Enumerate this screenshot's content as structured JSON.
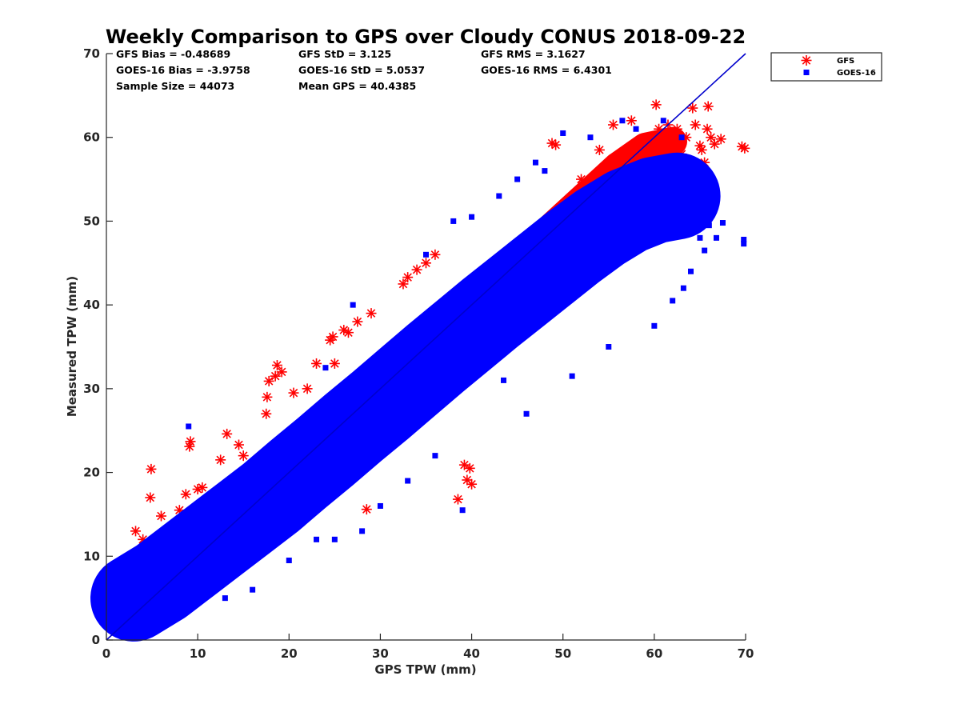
{
  "chart_data": {
    "type": "scatter",
    "title": "Weekly Comparison to GPS over Cloudy CONUS 2018-09-22",
    "xlabel": "GPS TPW (mm)",
    "ylabel": "Measured TPW (mm)",
    "xlim": [
      0,
      70
    ],
    "ylim": [
      0,
      70
    ],
    "x_ticks": [
      "0",
      "10",
      "20",
      "30",
      "40",
      "50",
      "60",
      "70"
    ],
    "y_ticks": [
      "0",
      "10",
      "20",
      "30",
      "40",
      "50",
      "60",
      "70"
    ],
    "grid": false,
    "legend_position": "outside-top-right",
    "reference_line": {
      "x": [
        0,
        70
      ],
      "y": [
        0,
        70
      ],
      "color": "#0000cc"
    },
    "stats": [
      [
        "GFS Bias = -0.48689",
        "GFS StD = 3.125",
        "GFS RMS = 3.1627"
      ],
      [
        "GOES-16 Bias = -3.9758",
        "GOES-16 StD = 5.0537",
        "GOES-16 RMS = 6.4301"
      ],
      [
        "Sample Size = 44073",
        "Mean GPS = 40.4385",
        ""
      ]
    ],
    "series": [
      {
        "name": "GFS",
        "marker": "asterisk",
        "color": "#ff0000",
        "bulk": [
          {
            "x": 5,
            "y": 6.8
          },
          {
            "x": 8,
            "y": 9
          },
          {
            "x": 11,
            "y": 11.8
          },
          {
            "x": 14,
            "y": 14.6
          },
          {
            "x": 17,
            "y": 17.5
          },
          {
            "x": 20,
            "y": 20.4
          },
          {
            "x": 23,
            "y": 23.3
          },
          {
            "x": 26,
            "y": 26.2
          },
          {
            "x": 29,
            "y": 29.2
          },
          {
            "x": 32,
            "y": 32.2
          },
          {
            "x": 35,
            "y": 35.3
          },
          {
            "x": 38,
            "y": 38.4
          },
          {
            "x": 41,
            "y": 41.4
          },
          {
            "x": 44,
            "y": 44.4
          },
          {
            "x": 47,
            "y": 47.5
          },
          {
            "x": 50,
            "y": 50.5
          },
          {
            "x": 53,
            "y": 53.5
          },
          {
            "x": 56,
            "y": 56.5
          },
          {
            "x": 59,
            "y": 58.8
          },
          {
            "x": 62,
            "y": 59.5
          }
        ],
        "bulk_width": 3.2,
        "points": [
          {
            "x": 2.5,
            "y": 8.5
          },
          {
            "x": 2.7,
            "y": 7.3
          },
          {
            "x": 3.2,
            "y": 13
          },
          {
            "x": 4,
            "y": 12
          },
          {
            "x": 4.5,
            "y": 10.5
          },
          {
            "x": 4.8,
            "y": 17
          },
          {
            "x": 4.9,
            "y": 20.4
          },
          {
            "x": 6,
            "y": 14.8
          },
          {
            "x": 7,
            "y": 10
          },
          {
            "x": 8,
            "y": 15.5
          },
          {
            "x": 8.7,
            "y": 17.4
          },
          {
            "x": 9.1,
            "y": 23.1
          },
          {
            "x": 9.2,
            "y": 23.7
          },
          {
            "x": 10,
            "y": 18
          },
          {
            "x": 10.5,
            "y": 18.2
          },
          {
            "x": 12.5,
            "y": 21.5
          },
          {
            "x": 13.2,
            "y": 24.6
          },
          {
            "x": 14.5,
            "y": 23.3
          },
          {
            "x": 15,
            "y": 22
          },
          {
            "x": 17.5,
            "y": 27
          },
          {
            "x": 17.6,
            "y": 29
          },
          {
            "x": 17.8,
            "y": 30.9
          },
          {
            "x": 18.5,
            "y": 31.5
          },
          {
            "x": 18.7,
            "y": 32.8
          },
          {
            "x": 19.2,
            "y": 32
          },
          {
            "x": 20.5,
            "y": 29.5
          },
          {
            "x": 22,
            "y": 30
          },
          {
            "x": 23,
            "y": 33
          },
          {
            "x": 24.5,
            "y": 35.8
          },
          {
            "x": 24.8,
            "y": 36.2
          },
          {
            "x": 25,
            "y": 33
          },
          {
            "x": 26,
            "y": 37
          },
          {
            "x": 26.5,
            "y": 36.7
          },
          {
            "x": 27.5,
            "y": 38
          },
          {
            "x": 29,
            "y": 39
          },
          {
            "x": 28.5,
            "y": 15.6
          },
          {
            "x": 32.5,
            "y": 42.5
          },
          {
            "x": 33,
            "y": 43.3
          },
          {
            "x": 34,
            "y": 44.2
          },
          {
            "x": 35,
            "y": 45
          },
          {
            "x": 36,
            "y": 46
          },
          {
            "x": 38.5,
            "y": 16.8
          },
          {
            "x": 39.2,
            "y": 20.9
          },
          {
            "x": 39.5,
            "y": 19.1
          },
          {
            "x": 39.8,
            "y": 20.5
          },
          {
            "x": 40,
            "y": 18.6
          },
          {
            "x": 48.8,
            "y": 59.3
          },
          {
            "x": 49.2,
            "y": 59.1
          },
          {
            "x": 52,
            "y": 55
          },
          {
            "x": 54,
            "y": 58.5
          },
          {
            "x": 55.5,
            "y": 61.5
          },
          {
            "x": 57.5,
            "y": 62
          },
          {
            "x": 60.2,
            "y": 63.9
          },
          {
            "x": 60.5,
            "y": 61
          },
          {
            "x": 61.5,
            "y": 61.5
          },
          {
            "x": 62.5,
            "y": 61
          },
          {
            "x": 63,
            "y": 58
          },
          {
            "x": 63.5,
            "y": 60
          },
          {
            "x": 63.8,
            "y": 56
          },
          {
            "x": 64.2,
            "y": 63.5
          },
          {
            "x": 64.5,
            "y": 61.5
          },
          {
            "x": 65,
            "y": 59
          },
          {
            "x": 65.2,
            "y": 58.5
          },
          {
            "x": 65.5,
            "y": 57
          },
          {
            "x": 65.8,
            "y": 61
          },
          {
            "x": 65.9,
            "y": 63.7
          },
          {
            "x": 66.2,
            "y": 60
          },
          {
            "x": 66.6,
            "y": 59.2
          },
          {
            "x": 67.3,
            "y": 59.8
          },
          {
            "x": 64.8,
            "y": 51.4
          },
          {
            "x": 64.3,
            "y": 54.2
          },
          {
            "x": 62,
            "y": 55.5
          },
          {
            "x": 69.6,
            "y": 58.9
          },
          {
            "x": 69.9,
            "y": 58.7
          }
        ]
      },
      {
        "name": "GOES-16",
        "marker": "square",
        "color": "#0000ff",
        "bulk": [
          {
            "x": 3,
            "y": 5
          },
          {
            "x": 6,
            "y": 7
          },
          {
            "x": 9,
            "y": 9.5
          },
          {
            "x": 12,
            "y": 12
          },
          {
            "x": 15,
            "y": 14.5
          },
          {
            "x": 18,
            "y": 17
          },
          {
            "x": 21,
            "y": 19.8
          },
          {
            "x": 24,
            "y": 22.5
          },
          {
            "x": 27,
            "y": 25.3
          },
          {
            "x": 30,
            "y": 28
          },
          {
            "x": 33,
            "y": 30.8
          },
          {
            "x": 36,
            "y": 33.6
          },
          {
            "x": 39,
            "y": 36.3
          },
          {
            "x": 42,
            "y": 39
          },
          {
            "x": 45,
            "y": 41.6
          },
          {
            "x": 48,
            "y": 44.2
          },
          {
            "x": 51,
            "y": 46.8
          },
          {
            "x": 54,
            "y": 49.2
          },
          {
            "x": 57,
            "y": 51.2
          },
          {
            "x": 60,
            "y": 52.5
          },
          {
            "x": 62.5,
            "y": 53
          }
        ],
        "bulk_width": 9.5,
        "points": [
          {
            "x": 2.5,
            "y": 5
          },
          {
            "x": 4.5,
            "y": 3.8
          },
          {
            "x": 5,
            "y": 4.3
          },
          {
            "x": 9,
            "y": 25.5
          },
          {
            "x": 13,
            "y": 5
          },
          {
            "x": 16,
            "y": 6
          },
          {
            "x": 20,
            "y": 9.5
          },
          {
            "x": 23,
            "y": 12
          },
          {
            "x": 24,
            "y": 32.5
          },
          {
            "x": 25,
            "y": 12
          },
          {
            "x": 28,
            "y": 13
          },
          {
            "x": 27,
            "y": 40
          },
          {
            "x": 30,
            "y": 16
          },
          {
            "x": 33,
            "y": 19
          },
          {
            "x": 35,
            "y": 46
          },
          {
            "x": 36,
            "y": 22
          },
          {
            "x": 38,
            "y": 50
          },
          {
            "x": 39,
            "y": 15.5
          },
          {
            "x": 40,
            "y": 50.5
          },
          {
            "x": 43,
            "y": 53
          },
          {
            "x": 43.5,
            "y": 31
          },
          {
            "x": 45,
            "y": 55
          },
          {
            "x": 46,
            "y": 27
          },
          {
            "x": 47,
            "y": 57
          },
          {
            "x": 48,
            "y": 56
          },
          {
            "x": 50,
            "y": 60.5
          },
          {
            "x": 51,
            "y": 31.5
          },
          {
            "x": 53,
            "y": 60
          },
          {
            "x": 55,
            "y": 35
          },
          {
            "x": 56.5,
            "y": 62
          },
          {
            "x": 58,
            "y": 61
          },
          {
            "x": 60,
            "y": 37.5
          },
          {
            "x": 61,
            "y": 62
          },
          {
            "x": 63,
            "y": 60
          },
          {
            "x": 64,
            "y": 44
          },
          {
            "x": 65,
            "y": 48
          },
          {
            "x": 65.5,
            "y": 46.5
          },
          {
            "x": 66,
            "y": 49.5
          },
          {
            "x": 66.8,
            "y": 48
          },
          {
            "x": 67.5,
            "y": 49.8
          },
          {
            "x": 63.2,
            "y": 42
          },
          {
            "x": 62,
            "y": 40.5
          },
          {
            "x": 69.8,
            "y": 47.8
          },
          {
            "x": 69.8,
            "y": 47.3
          }
        ]
      }
    ]
  }
}
